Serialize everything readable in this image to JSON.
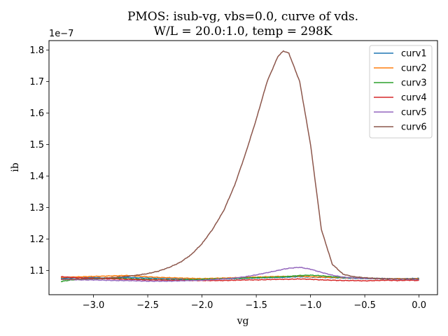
{
  "chart_data": {
    "type": "line",
    "title_line1": "PMOS: isub-vg, vbs=0.0, curve of vds.",
    "title_line2": "W/L = 20.0:1.0, temp = 298K",
    "xlabel": "vg",
    "ylabel": "ib",
    "y_offset_text": "1e−7",
    "xlim": [
      -3.41,
      0.17
    ],
    "ylim": [
      1.023e-07,
      1.83e-07
    ],
    "x_ticks": [
      -3.0,
      -2.5,
      -2.0,
      -1.5,
      -1.0,
      -0.5,
      0.0
    ],
    "x_tick_labels": [
      "−3.0",
      "−2.5",
      "−2.0",
      "−1.5",
      "−1.0",
      "−0.5",
      "0.0"
    ],
    "y_ticks": [
      1.1e-07,
      1.2e-07,
      1.3e-07,
      1.4e-07,
      1.5e-07,
      1.6e-07,
      1.7e-07,
      1.8e-07
    ],
    "y_tick_labels": [
      "1.1",
      "1.2",
      "1.3",
      "1.4",
      "1.5",
      "1.6",
      "1.7",
      "1.8"
    ],
    "legend_position": "upper right",
    "grid": false,
    "x": [
      -3.3,
      -3.2,
      -3.1,
      -3.0,
      -2.9,
      -2.8,
      -2.7,
      -2.6,
      -2.5,
      -2.4,
      -2.3,
      -2.2,
      -2.1,
      -2.0,
      -1.9,
      -1.8,
      -1.7,
      -1.6,
      -1.5,
      -1.4,
      -1.3,
      -1.25,
      -1.2,
      -1.1,
      -1.0,
      -0.9,
      -0.8,
      -0.7,
      -0.6,
      -0.5,
      -0.4,
      -0.3,
      -0.2,
      -0.1,
      0.0
    ],
    "series": [
      {
        "name": "curv1",
        "color": "#1f77b4",
        "values": [
          1.075e-07,
          1.076e-07,
          1.077e-07,
          1.078e-07,
          1.076e-07,
          1.077e-07,
          1.078e-07,
          1.077e-07,
          1.076e-07,
          1.075e-07,
          1.074e-07,
          1.073e-07,
          1.072e-07,
          1.071e-07,
          1.072e-07,
          1.073e-07,
          1.074e-07,
          1.075e-07,
          1.076e-07,
          1.077e-07,
          1.078e-07,
          1.078e-07,
          1.079e-07,
          1.08e-07,
          1.079e-07,
          1.078e-07,
          1.077e-07,
          1.076e-07,
          1.075e-07,
          1.074e-07,
          1.075e-07,
          1.074e-07,
          1.073e-07,
          1.074e-07,
          1.075e-07
        ]
      },
      {
        "name": "curv2",
        "color": "#ff7f0e",
        "values": [
          1.078e-07,
          1.079e-07,
          1.08e-07,
          1.081e-07,
          1.082e-07,
          1.083e-07,
          1.084e-07,
          1.082e-07,
          1.08e-07,
          1.078e-07,
          1.077e-07,
          1.076e-07,
          1.075e-07,
          1.074e-07,
          1.075e-07,
          1.076e-07,
          1.077e-07,
          1.078e-07,
          1.079e-07,
          1.08e-07,
          1.081e-07,
          1.081e-07,
          1.081e-07,
          1.082e-07,
          1.08e-07,
          1.079e-07,
          1.078e-07,
          1.077e-07,
          1.076e-07,
          1.075e-07,
          1.074e-07,
          1.073e-07,
          1.074e-07,
          1.073e-07,
          1.074e-07
        ]
      },
      {
        "name": "curv3",
        "color": "#2ca02c",
        "values": [
          1.065e-07,
          1.07e-07,
          1.072e-07,
          1.073e-07,
          1.074e-07,
          1.075e-07,
          1.074e-07,
          1.073e-07,
          1.072e-07,
          1.071e-07,
          1.07e-07,
          1.07e-07,
          1.071e-07,
          1.072e-07,
          1.073e-07,
          1.074e-07,
          1.075e-07,
          1.076e-07,
          1.077e-07,
          1.078e-07,
          1.079e-07,
          1.08e-07,
          1.081e-07,
          1.084e-07,
          1.085e-07,
          1.083e-07,
          1.08e-07,
          1.078e-07,
          1.076e-07,
          1.075e-07,
          1.074e-07,
          1.073e-07,
          1.073e-07,
          1.072e-07,
          1.073e-07
        ]
      },
      {
        "name": "curv4",
        "color": "#d62728",
        "values": [
          1.08e-07,
          1.078e-07,
          1.076e-07,
          1.075e-07,
          1.074e-07,
          1.073e-07,
          1.072e-07,
          1.071e-07,
          1.07e-07,
          1.07e-07,
          1.069e-07,
          1.069e-07,
          1.068e-07,
          1.068e-07,
          1.068e-07,
          1.068e-07,
          1.069e-07,
          1.07e-07,
          1.07e-07,
          1.071e-07,
          1.072e-07,
          1.072e-07,
          1.072e-07,
          1.073e-07,
          1.072e-07,
          1.07e-07,
          1.069e-07,
          1.068e-07,
          1.068e-07,
          1.067e-07,
          1.068e-07,
          1.069e-07,
          1.068e-07,
          1.069e-07,
          1.068e-07
        ]
      },
      {
        "name": "curv5",
        "color": "#9467bd",
        "values": [
          1.072e-07,
          1.071e-07,
          1.07e-07,
          1.07e-07,
          1.069e-07,
          1.068e-07,
          1.068e-07,
          1.067e-07,
          1.066e-07,
          1.066e-07,
          1.066e-07,
          1.067e-07,
          1.068e-07,
          1.069e-07,
          1.071e-07,
          1.073e-07,
          1.076e-07,
          1.08e-07,
          1.086e-07,
          1.093e-07,
          1.1e-07,
          1.104e-07,
          1.107e-07,
          1.11e-07,
          1.104e-07,
          1.094e-07,
          1.085e-07,
          1.079e-07,
          1.076e-07,
          1.075e-07,
          1.074e-07,
          1.073e-07,
          1.072e-07,
          1.072e-07,
          1.071e-07
        ]
      },
      {
        "name": "curv6",
        "color": "#8c564b",
        "values": [
          1.072e-07,
          1.072e-07,
          1.073e-07,
          1.074e-07,
          1.076e-07,
          1.078e-07,
          1.081e-07,
          1.085e-07,
          1.09e-07,
          1.098e-07,
          1.11e-07,
          1.126e-07,
          1.15e-07,
          1.185e-07,
          1.232e-07,
          1.29e-07,
          1.37e-07,
          1.47e-07,
          1.58e-07,
          1.7e-07,
          1.78e-07,
          1.797e-07,
          1.79e-07,
          1.7e-07,
          1.5e-07,
          1.23e-07,
          1.12e-07,
          1.088e-07,
          1.08e-07,
          1.077e-07,
          1.075e-07,
          1.074e-07,
          1.073e-07,
          1.073e-07,
          1.073e-07
        ]
      }
    ]
  }
}
